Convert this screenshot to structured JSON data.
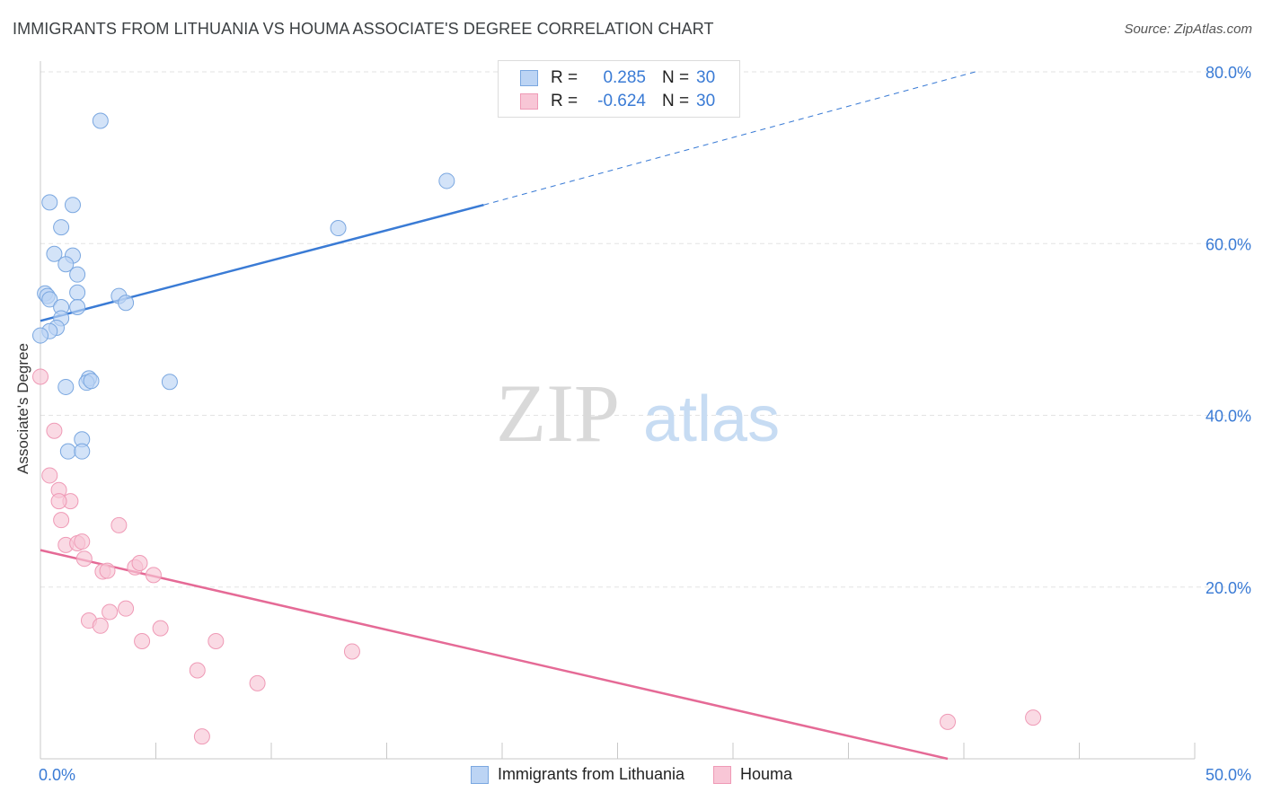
{
  "header": {
    "title": "IMMIGRANTS FROM LITHUANIA VS HOUMA ASSOCIATE'S DEGREE CORRELATION CHART",
    "source": "Source: ZipAtlas.com"
  },
  "colors": {
    "blue": "#3a7bd5",
    "blue_fill": "#bcd4f4",
    "blue_stroke": "#7aa7e0",
    "pink": "#e56a96",
    "pink_fill": "#f8c6d6",
    "pink_stroke": "#ef9ab6",
    "grid": "#e3e3e3",
    "watermark_zip": "#d9d9d9",
    "watermark_atlas": "#c7dcf3"
  },
  "watermark": {
    "zip": "ZIP",
    "atlas": "atlas"
  },
  "legend": {
    "rows": [
      {
        "r_label": "R =",
        "r_value": "0.285",
        "n_label": "N =",
        "n_value": "30"
      },
      {
        "r_label": "R =",
        "r_value": "-0.624",
        "n_label": "N =",
        "n_value": "30"
      }
    ]
  },
  "chart_data": {
    "type": "scatter",
    "title": "IMMIGRANTS FROM LITHUANIA VS HOUMA ASSOCIATE'S DEGREE CORRELATION CHART",
    "xlabel": "",
    "ylabel": "Associate's Degree",
    "xlim": [
      0,
      50
    ],
    "ylim": [
      0,
      80
    ],
    "x_tick_labels": [
      "0.0%",
      "50.0%"
    ],
    "y_ticks": [
      20,
      40,
      60,
      80
    ],
    "y_tick_labels": [
      "20.0%",
      "40.0%",
      "60.0%",
      "80.0%"
    ],
    "grid": true,
    "legend_placement": "top-center",
    "series": [
      {
        "name": "Immigrants from Lithuania",
        "color": "#3a7bd5",
        "points": [
          [
            2.6,
            74.3
          ],
          [
            0.4,
            64.8
          ],
          [
            1.4,
            64.5
          ],
          [
            0.9,
            61.9
          ],
          [
            0.6,
            58.8
          ],
          [
            1.4,
            58.6
          ],
          [
            1.1,
            57.6
          ],
          [
            1.6,
            56.4
          ],
          [
            0.2,
            54.2
          ],
          [
            0.3,
            53.9
          ],
          [
            1.6,
            54.3
          ],
          [
            0.4,
            53.5
          ],
          [
            3.4,
            53.9
          ],
          [
            1.6,
            52.6
          ],
          [
            3.7,
            53.1
          ],
          [
            0.9,
            52.6
          ],
          [
            0.9,
            51.3
          ],
          [
            0.7,
            50.2
          ],
          [
            0.4,
            49.8
          ],
          [
            0.0,
            49.3
          ],
          [
            2.1,
            44.3
          ],
          [
            2.0,
            43.8
          ],
          [
            2.2,
            44.0
          ],
          [
            5.6,
            43.9
          ],
          [
            1.1,
            43.3
          ],
          [
            1.8,
            37.2
          ],
          [
            1.2,
            35.8
          ],
          [
            1.8,
            35.8
          ],
          [
            12.9,
            61.8
          ],
          [
            17.6,
            67.3
          ]
        ],
        "trend": {
          "x": [
            0,
            19.2
          ],
          "y": [
            51.0,
            64.5
          ],
          "dashed_to": {
            "x": 40.5,
            "y": 80.0
          }
        }
      },
      {
        "name": "Houma",
        "color": "#e56a96",
        "points": [
          [
            0.0,
            44.5
          ],
          [
            0.6,
            38.2
          ],
          [
            0.4,
            33.0
          ],
          [
            0.8,
            31.3
          ],
          [
            1.3,
            30.0
          ],
          [
            0.9,
            27.8
          ],
          [
            3.4,
            27.2
          ],
          [
            1.1,
            24.9
          ],
          [
            1.6,
            25.1
          ],
          [
            1.8,
            25.3
          ],
          [
            1.9,
            23.3
          ],
          [
            2.7,
            21.8
          ],
          [
            2.9,
            21.9
          ],
          [
            4.1,
            22.3
          ],
          [
            4.3,
            22.8
          ],
          [
            4.9,
            21.4
          ],
          [
            2.1,
            16.1
          ],
          [
            2.6,
            15.5
          ],
          [
            3.0,
            17.1
          ],
          [
            3.7,
            17.5
          ],
          [
            4.4,
            13.7
          ],
          [
            5.2,
            15.2
          ],
          [
            6.8,
            10.3
          ],
          [
            7.6,
            13.7
          ],
          [
            9.4,
            8.8
          ],
          [
            7.0,
            2.6
          ],
          [
            13.5,
            12.5
          ],
          [
            39.3,
            4.3
          ],
          [
            43.0,
            4.8
          ],
          [
            0.8,
            30.0
          ]
        ],
        "trend": {
          "x": [
            0,
            39.3
          ],
          "y": [
            24.3,
            0.0
          ]
        }
      }
    ]
  }
}
